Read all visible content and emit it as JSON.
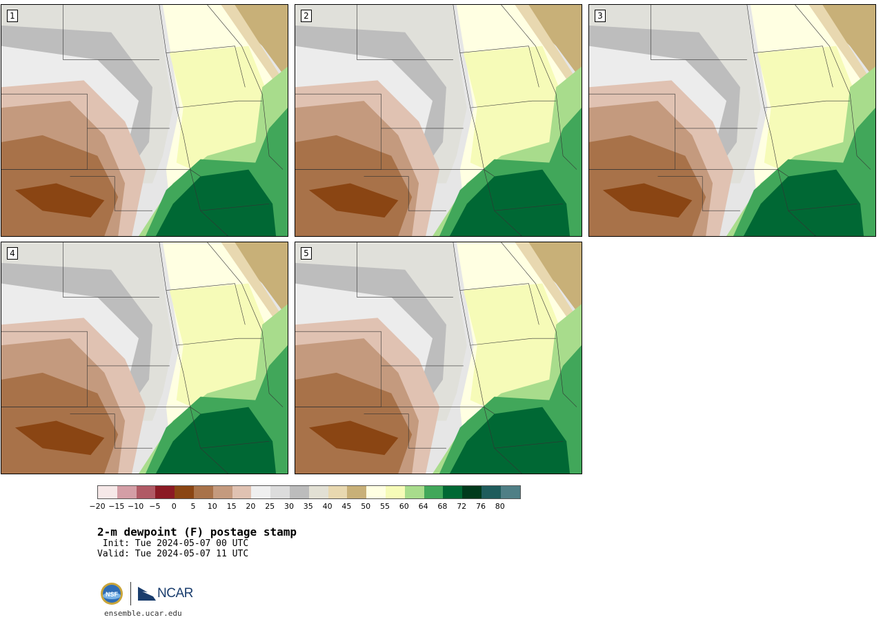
{
  "title": "2-m dewpoint (F) postage stamp",
  "init_line": " Init: Tue 2024-05-07 00 UTC",
  "valid_line": "Valid: Tue 2024-05-07 11 UTC",
  "site": "ensemble.ucar.edu",
  "logos": {
    "nsf": "NSF",
    "ncar": "NCAR"
  },
  "panels": [
    {
      "label": "1"
    },
    {
      "label": "2"
    },
    {
      "label": "3"
    },
    {
      "label": "4"
    },
    {
      "label": "5"
    }
  ],
  "colorbar": {
    "colors": [
      "#f6e8e8",
      "#d49ea6",
      "#b05a65",
      "#8b1a24",
      "#8a4513",
      "#a87249",
      "#c49a7e",
      "#e0c2b2",
      "#efefef",
      "#dcdcdc",
      "#bcbcbc",
      "#e2e0d4",
      "#e8d8b0",
      "#c8b078",
      "#ffffe2",
      "#f6fbb8",
      "#a8dc8c",
      "#41a75a",
      "#006834",
      "#003a1c",
      "#1f5c5c",
      "#4f7f86"
    ],
    "tick_labels": [
      "−20",
      "−15",
      "−10",
      "−5",
      "0",
      "5",
      "10",
      "15",
      "20",
      "25",
      "30",
      "35",
      "40",
      "45",
      "50",
      "55",
      "60",
      "64",
      "68",
      "72",
      "76",
      "80"
    ]
  }
}
